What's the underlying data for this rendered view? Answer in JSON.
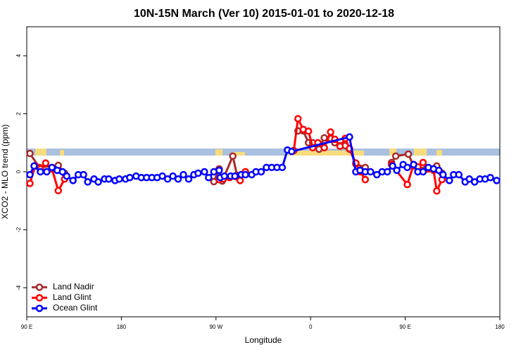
{
  "chart_data": {
    "type": "line",
    "title": "10N-15N March (Ver 10)   2015-01-01 to 2020-12-18",
    "x_label": "Longitude",
    "y_label": "XCO2 - MLO trend (ppm)",
    "xlim": [
      90,
      540
    ],
    "xticks": [
      {
        "value": 90,
        "label": "90 E"
      },
      {
        "value": 180,
        "label": "180"
      },
      {
        "value": 270,
        "label": "90 W"
      },
      {
        "value": 360,
        "label": "0"
      },
      {
        "value": 450,
        "label": "90 E"
      },
      {
        "value": 540,
        "label": "180"
      }
    ],
    "ylim": [
      -5,
      5
    ],
    "yticks": [
      -4,
      -2,
      0,
      2,
      4
    ],
    "legend": "bottom-left",
    "series": [
      {
        "name": "Land Nadir",
        "color": "#a52a2a",
        "x": [
          93,
          102,
          120,
          126,
          null,
          268,
          273,
          276,
          286,
          290,
          298,
          null,
          348,
          353,
          358,
          362,
          368,
          373,
          379,
          383,
          388,
          393,
          397,
          403,
          412,
          null,
          437,
          441,
          453,
          458,
          470,
          480,
          485
        ],
        "values": [
          0.63,
          0.15,
          0.22,
          -0.05,
          null,
          -0.34,
          0.1,
          -0.32,
          0.54,
          -0.12,
          0,
          null,
          1.41,
          1.41,
          1.0,
          1.0,
          0.78,
          1.17,
          1.15,
          1.0,
          0.9,
          0.9,
          0.78,
          0.27,
          0.15,
          null,
          0.32,
          0.54,
          0.61,
          0.2,
          0.1,
          0.2,
          -0.05
        ]
      },
      {
        "name": "Land Glint",
        "color": "#ff0000",
        "x": [
          93,
          98,
          103,
          108,
          114,
          120,
          126,
          null,
          273,
          277,
          283,
          293,
          298,
          null,
          344,
          348,
          353,
          358,
          362,
          367,
          373,
          379,
          383,
          388,
          393,
          397,
          403,
          407,
          412,
          null,
          437,
          452,
          458,
          462,
          467,
          472,
          477,
          480,
          485
        ],
        "values": [
          -0.4,
          0.2,
          0.1,
          0.3,
          0.1,
          -0.65,
          -0.25,
          null,
          -0.27,
          -0.25,
          -0.2,
          -0.3,
          0,
          null,
          0.73,
          1.83,
          1.46,
          1.4,
          0.83,
          1.0,
          0.83,
          1.37,
          1.12,
          0.88,
          1.15,
          0.8,
          0.3,
          0,
          -0.27,
          null,
          0.25,
          -0.44,
          0.25,
          0.17,
          0.32,
          0.1,
          0.05,
          -0.66,
          -0.27
        ]
      },
      {
        "name": "Ocean Glint",
        "color": "#0000ff",
        "x": [
          93,
          97,
          103,
          109,
          114,
          119,
          124,
          128,
          134,
          139,
          144,
          148,
          154,
          158,
          164,
          168,
          174,
          178,
          184,
          188,
          194,
          199,
          204,
          209,
          214,
          219,
          224,
          229,
          234,
          239,
          244,
          249,
          253,
          259,
          263,
          268,
          273,
          274,
          278,
          284,
          288,
          294,
          298,
          304,
          308,
          313,
          318,
          323,
          328,
          333,
          338,
          342,
          397,
          403,
          407,
          412,
          417,
          423,
          428,
          433,
          438,
          442,
          448,
          452,
          458,
          462,
          467,
          472,
          477,
          482,
          486,
          492,
          496,
          501,
          507,
          511,
          516,
          521,
          526,
          531,
          537
        ],
        "values": [
          -0.1,
          0.2,
          0,
          0,
          0.15,
          0.05,
          0,
          -0.15,
          -0.3,
          -0.1,
          -0.1,
          -0.35,
          -0.25,
          -0.35,
          -0.25,
          -0.25,
          -0.3,
          -0.25,
          -0.25,
          -0.2,
          -0.15,
          -0.2,
          -0.2,
          -0.2,
          -0.2,
          -0.15,
          -0.25,
          -0.15,
          -0.25,
          -0.1,
          -0.25,
          -0.1,
          -0.05,
          0,
          -0.2,
          0,
          0.05,
          -0.2,
          -0.15,
          -0.15,
          -0.15,
          -0.1,
          -0.1,
          -0.1,
          0,
          0,
          0.15,
          0.15,
          0.15,
          0.15,
          0.75,
          0.7,
          1.2,
          0,
          0.05,
          0,
          0,
          -0.1,
          0,
          0,
          0.2,
          0.05,
          0.25,
          0.15,
          0.25,
          0,
          0,
          0.15,
          0.1,
          0.05,
          -0.1,
          -0.3,
          -0.1,
          -0.1,
          -0.35,
          -0.25,
          -0.35,
          -0.25,
          -0.25,
          -0.2,
          -0.3
        ]
      }
    ]
  }
}
